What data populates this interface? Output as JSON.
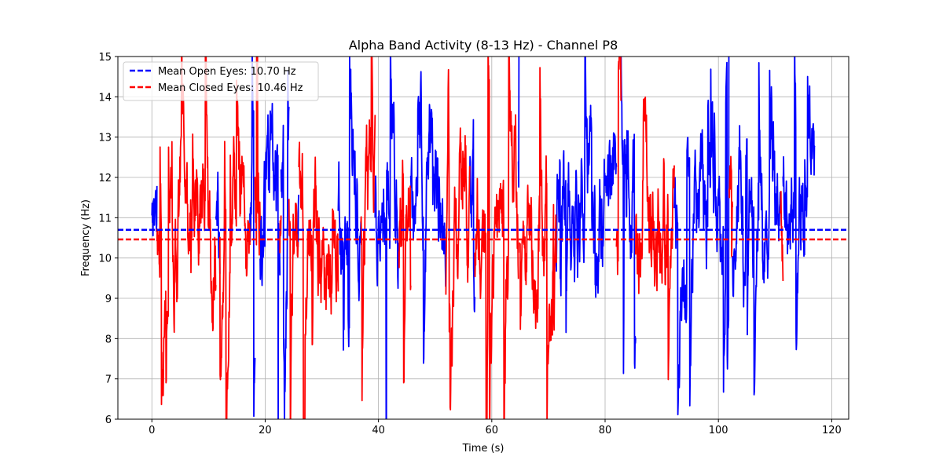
{
  "chart_data": {
    "type": "line",
    "title": "Alpha Band Activity (8-13 Hz) - Channel P8",
    "xlabel": "Time (s)",
    "ylabel": "Frequency (Hz)",
    "xlim": [
      -6,
      123
    ],
    "ylim": [
      6,
      15
    ],
    "xticks": [
      0,
      20,
      40,
      60,
      80,
      100,
      120
    ],
    "yticks": [
      6,
      7,
      8,
      9,
      10,
      11,
      12,
      13,
      14,
      15
    ],
    "grid": true,
    "legend_position": "top-left",
    "colors": {
      "open": "#0000ff",
      "closed": "#ff0000"
    },
    "series": [
      {
        "name": "Eyes Open",
        "color": "#0000ff",
        "segments": [
          [
            0,
            0.9
          ],
          [
            11.3,
            12.0
          ],
          [
            17.3,
            18.2
          ],
          [
            19.1,
            22.6
          ],
          [
            22.8,
            24.2
          ],
          [
            25.8,
            25.9
          ],
          [
            32.9,
            36.9
          ],
          [
            39.4,
            43.6
          ],
          [
            45.7,
            51.9
          ],
          [
            56.1,
            57.0
          ],
          [
            64.7,
            64.9
          ],
          [
            71.4,
            82.0
          ],
          [
            82.8,
            85.4
          ],
          [
            92.2,
            101.9
          ],
          [
            102.5,
            110.9
          ],
          [
            111.4,
            117.0
          ]
        ]
      },
      {
        "name": "Eyes Closed",
        "color": "#ff0000",
        "segments": [
          [
            0.9,
            11.3
          ],
          [
            12.0,
            17.3
          ],
          [
            18.2,
            19.1
          ],
          [
            22.6,
            22.8
          ],
          [
            24.2,
            25.8
          ],
          [
            25.9,
            32.9
          ],
          [
            36.9,
            39.4
          ],
          [
            43.6,
            45.7
          ],
          [
            51.9,
            56.1
          ],
          [
            57.0,
            64.7
          ],
          [
            64.9,
            71.4
          ],
          [
            82.0,
            82.8
          ],
          [
            85.4,
            92.2
          ],
          [
            101.9,
            102.5
          ],
          [
            110.9,
            111.4
          ]
        ]
      }
    ],
    "mean_lines": [
      {
        "label": "Mean Open Eyes: 10.70 Hz",
        "value": 10.7,
        "color": "#0000ff"
      },
      {
        "label": "Mean Closed Eyes: 10.46 Hz",
        "value": 10.46,
        "color": "#ff0000"
      }
    ],
    "x_end": 117
  }
}
